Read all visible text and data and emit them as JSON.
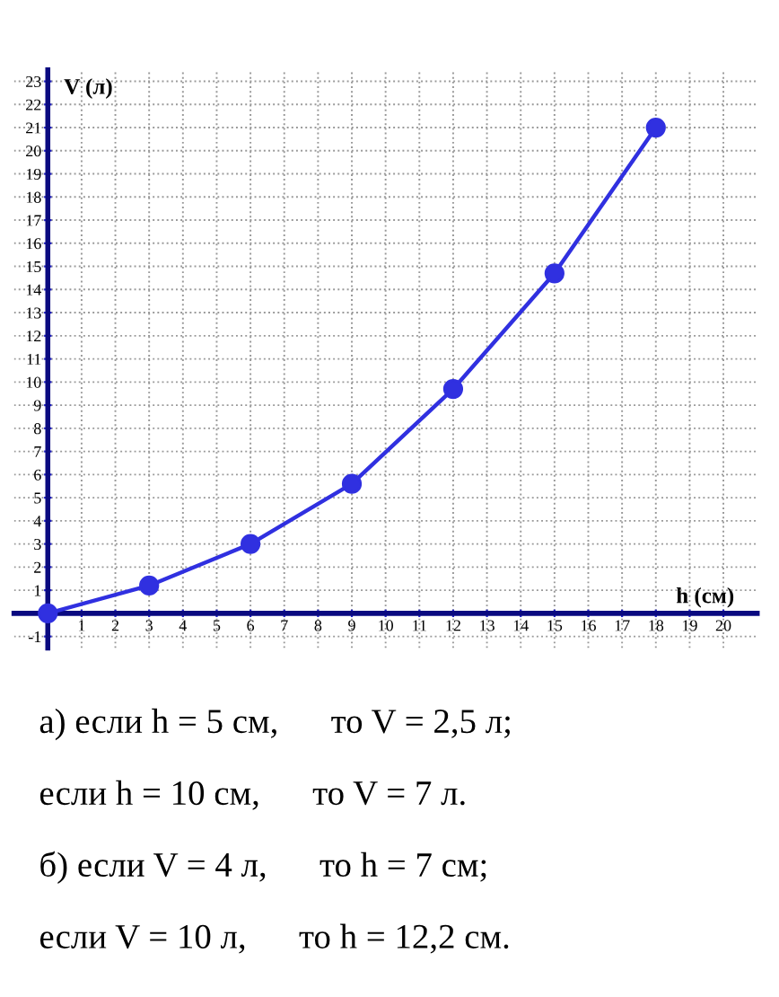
{
  "chart_data": {
    "type": "line",
    "xlabel": "h (см)",
    "ylabel": "V (л)",
    "x": [
      0,
      3,
      6,
      9,
      12,
      15,
      18
    ],
    "series": [
      {
        "color": "#3030e0",
        "values": [
          0,
          1.2,
          3,
          5.6,
          9.7,
          14.7,
          21
        ]
      }
    ],
    "xlim": [
      -1,
      21
    ],
    "ylim": [
      -1.5,
      23.5
    ],
    "xticks": [
      1,
      2,
      3,
      4,
      5,
      6,
      7,
      8,
      9,
      10,
      11,
      12,
      13,
      14,
      15,
      16,
      17,
      18,
      19,
      20
    ],
    "yticks": [
      -1,
      1,
      2,
      3,
      4,
      5,
      6,
      7,
      8,
      9,
      10,
      11,
      12,
      13,
      14,
      15,
      16,
      17,
      18,
      19,
      20,
      21,
      22,
      23
    ],
    "grid": true,
    "marker": "circle",
    "line_style": "solid",
    "annotations": [
      "а) если h = 5 см,      то V = 2,5 л;",
      "если h = 10 см,      то V = 7 л.",
      "б) если V = 4 л,      то h = 7 см;",
      "если V = 10 л,      то h = 12,2 см."
    ]
  }
}
